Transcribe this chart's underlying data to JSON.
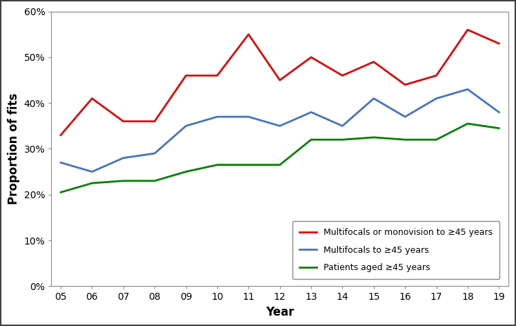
{
  "years": [
    5,
    6,
    7,
    8,
    9,
    10,
    11,
    12,
    13,
    14,
    15,
    16,
    17,
    18,
    19
  ],
  "year_labels": [
    "05",
    "06",
    "07",
    "08",
    "09",
    "10",
    "11",
    "12",
    "13",
    "14",
    "15",
    "16",
    "17",
    "18",
    "19"
  ],
  "red_line": [
    33,
    41,
    36,
    36,
    46,
    46,
    55,
    45,
    50,
    46,
    49,
    44,
    46,
    56,
    53
  ],
  "blue_line": [
    27,
    25,
    28,
    29,
    35,
    37,
    37,
    35,
    38,
    35,
    41,
    37,
    41,
    43,
    38
  ],
  "green_line": [
    20.5,
    22.5,
    23,
    23,
    25,
    26.5,
    26.5,
    26.5,
    32,
    32,
    32.5,
    32,
    32,
    35.5,
    34.5
  ],
  "red_color": "#e00000",
  "blue_color": "#4472c4",
  "green_color": "#008000",
  "red_label": "Multifocals or monovision to ≥45 years",
  "blue_label": "Multifocals to ≥45 years",
  "green_label": "Patients aged ≥45 years",
  "ylabel": "Proportion of fits",
  "xlabel": "Year",
  "ylim": [
    0,
    60
  ],
  "yticks": [
    0,
    10,
    20,
    30,
    40,
    50,
    60
  ],
  "linewidth": 2.0,
  "figure_bg": "#ffffff",
  "outer_border_color": "#404040",
  "outer_border_lw": 1.5
}
